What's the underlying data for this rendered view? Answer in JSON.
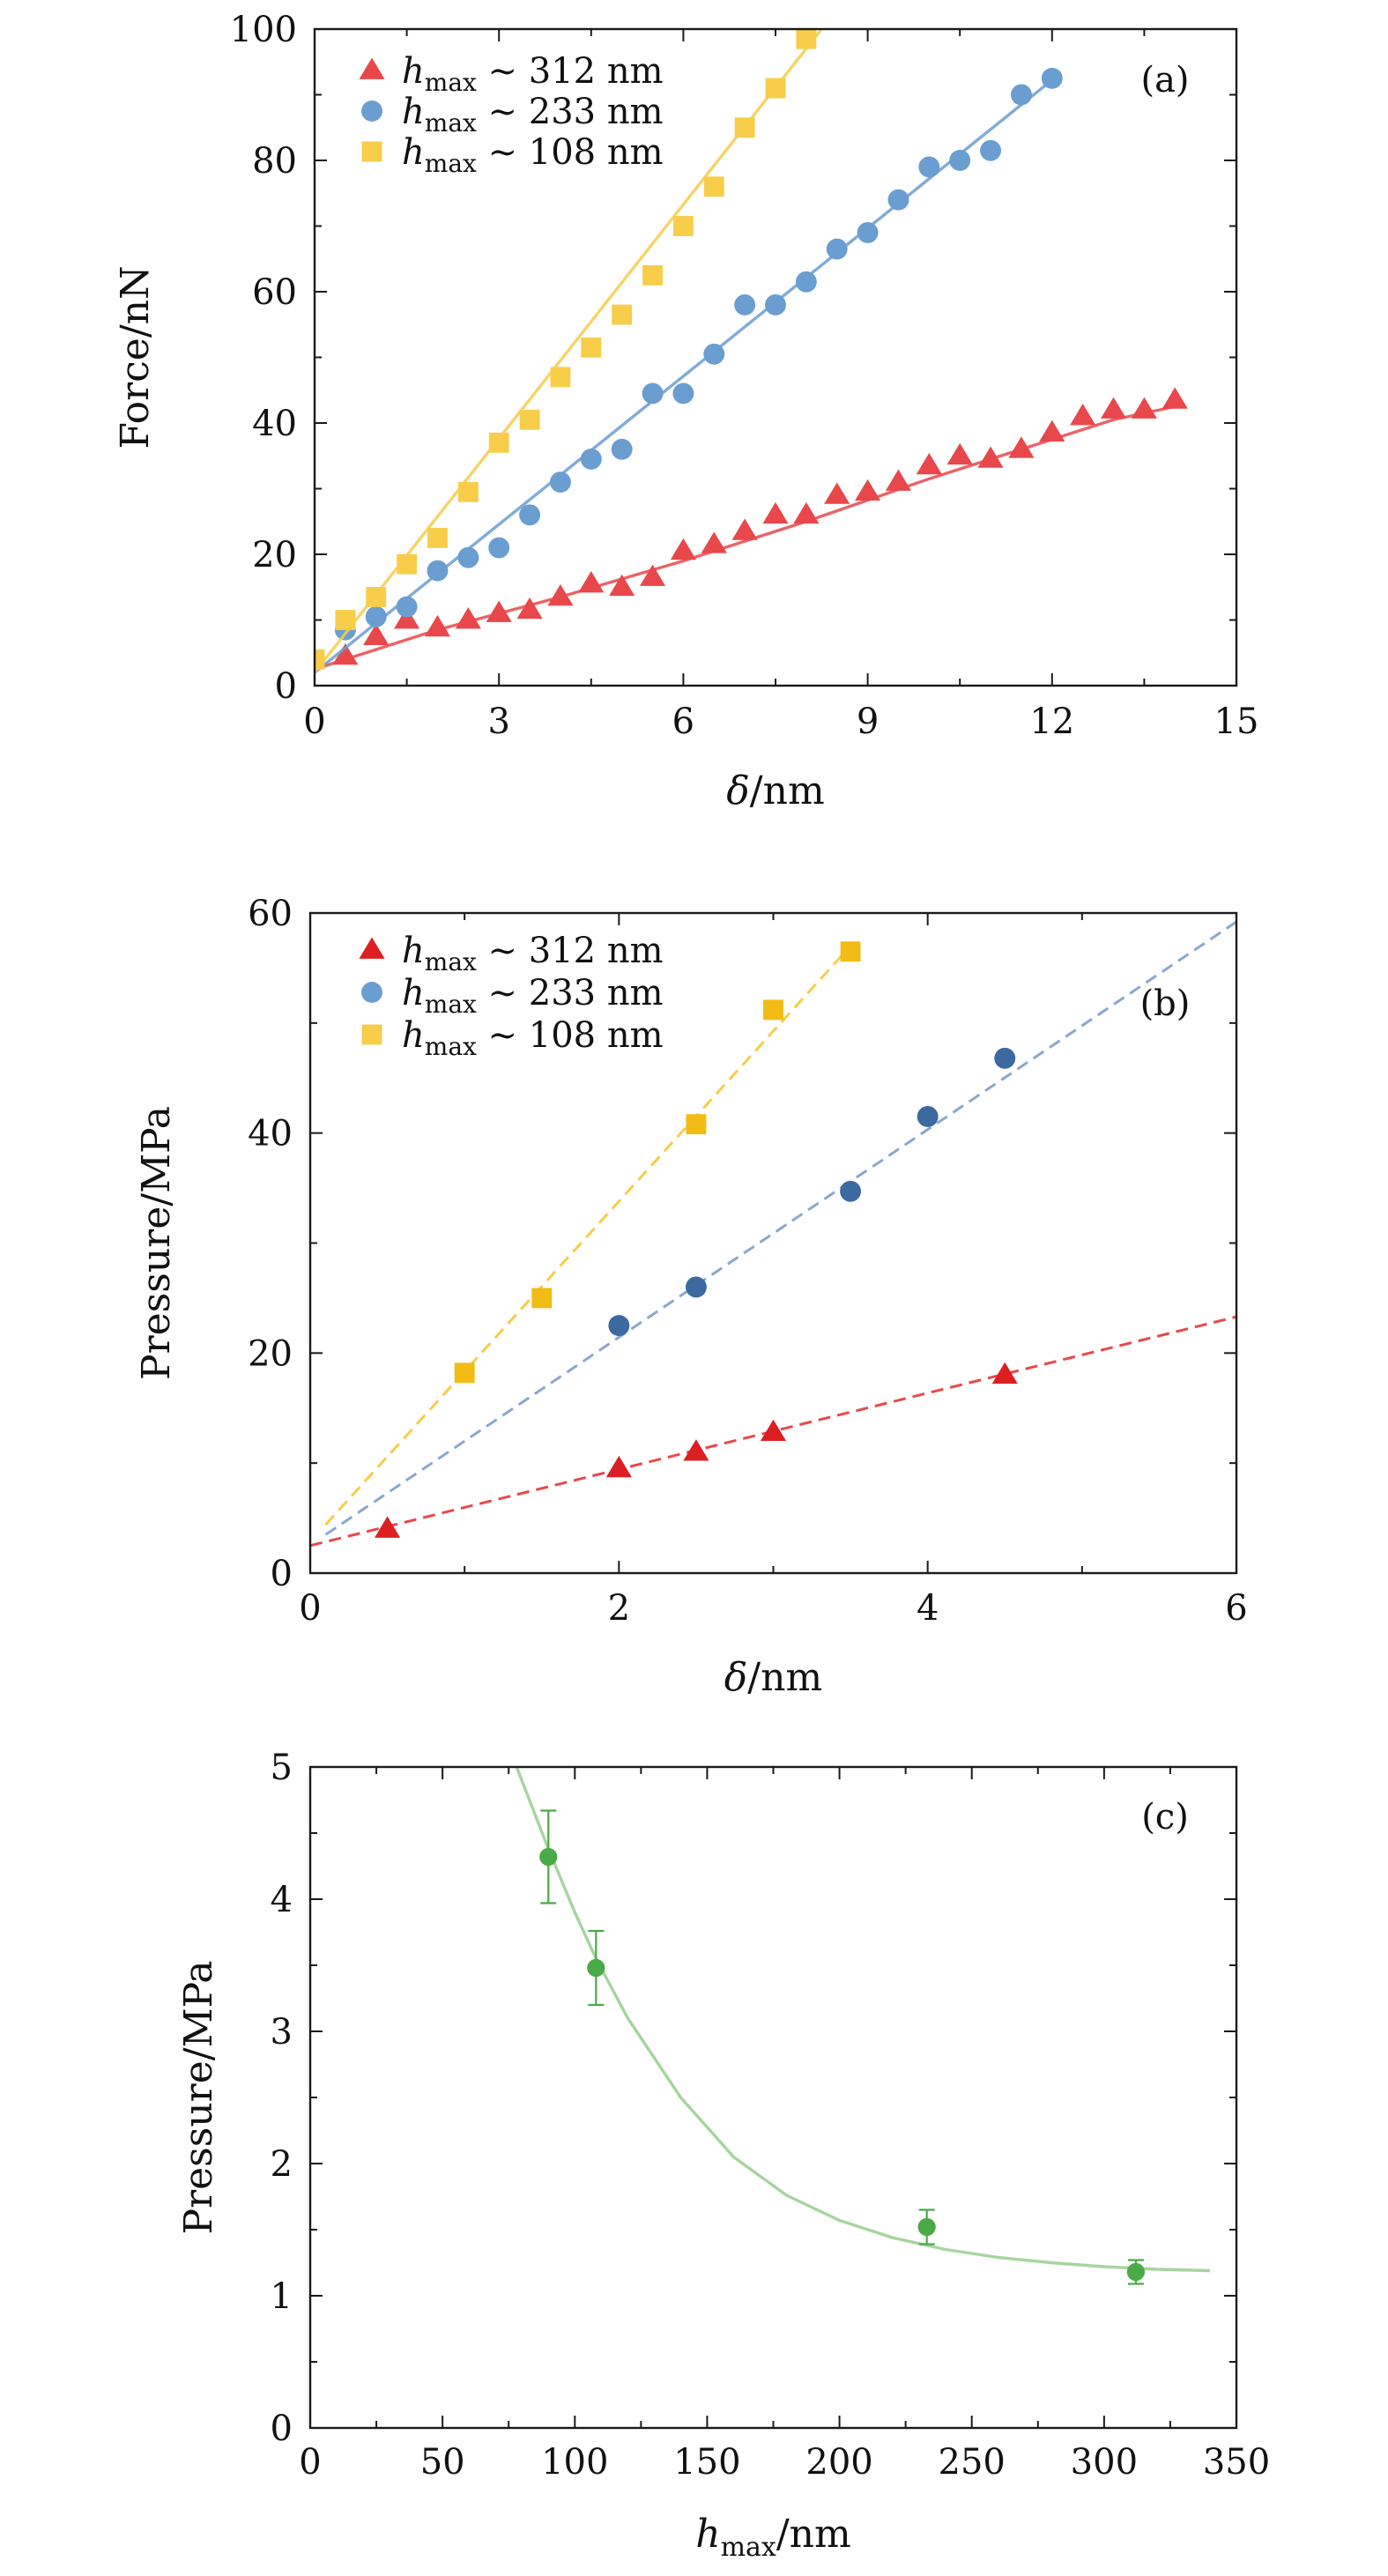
{
  "colors": {
    "red": "#e8484b",
    "blue": "#6a9ed0",
    "blue_dark": "#3c6aa0",
    "yellow": "#f7cd4a",
    "yellow_dark": "#f2bc14",
    "red_dark": "#dc1f22",
    "green": "#4aaa48",
    "green_line": "#a6d59e"
  },
  "chart_data": [
    {
      "type": "scatter",
      "panel_label": "(a)",
      "xlabel": "δ/nm",
      "ylabel": "Force/nN",
      "xlim": [
        0,
        15
      ],
      "ylim": [
        0,
        100
      ],
      "xticks": [
        0,
        3,
        6,
        9,
        12,
        15
      ],
      "yticks": [
        0,
        20,
        40,
        60,
        80,
        100
      ],
      "grid": false,
      "legend_placement": "top-left",
      "series": [
        {
          "name_prefix": "h",
          "name_sub": "max",
          "name_suffix": " ∼ 312 nm",
          "marker": "triangle",
          "color": "#e8484b",
          "x": [
            0.5,
            1.0,
            1.5,
            2.0,
            2.5,
            3.0,
            3.5,
            4.0,
            4.5,
            5.0,
            5.5,
            6.0,
            6.5,
            7.0,
            7.5,
            8.0,
            8.5,
            9.0,
            9.5,
            10.0,
            10.5,
            11.0,
            11.5,
            12.0,
            12.5,
            13.0,
            13.5,
            14.0
          ],
          "y": [
            4.5,
            7.5,
            10.0,
            8.8,
            10.0,
            11.0,
            11.5,
            13.5,
            15.5,
            15.0,
            16.5,
            20.5,
            21.5,
            23.5,
            26.0,
            26.0,
            29.0,
            29.5,
            31.0,
            33.5,
            35.0,
            34.5,
            36.0,
            38.5,
            41.0,
            42.0,
            42.0,
            43.5
          ],
          "fit": {
            "x": [
              0,
              2,
              4,
              6,
              8,
              10,
              12,
              13,
              14
            ],
            "y": [
              2.5,
              8.5,
              13.5,
              19.0,
              25.0,
              31.5,
              37.5,
              40.5,
              42.5
            ]
          }
        },
        {
          "name_prefix": "h",
          "name_sub": "max",
          "name_suffix": " ∼ 233 nm",
          "marker": "circle",
          "color": "#6a9ed0",
          "x": [
            0.5,
            1.0,
            1.5,
            2.0,
            2.5,
            3.0,
            3.5,
            4.0,
            4.5,
            5.0,
            5.5,
            6.0,
            6.5,
            7.0,
            7.5,
            8.0,
            8.5,
            9.0,
            9.5,
            10.0,
            10.5,
            11.0,
            11.5,
            12.0
          ],
          "y": [
            8.5,
            10.5,
            12.0,
            17.5,
            19.5,
            21.0,
            26.0,
            31.0,
            34.5,
            36.0,
            44.5,
            44.5,
            50.5,
            58.0,
            58.0,
            61.5,
            66.5,
            69.0,
            74.0,
            79.0,
            80.0,
            81.5,
            90.0,
            92.5
          ],
          "fit": {
            "x": [
              0,
              12.1
            ],
            "y": [
              2.0,
              93.0
            ]
          }
        },
        {
          "name_prefix": "h",
          "name_sub": "max",
          "name_suffix": " ∼ 108 nm",
          "marker": "square",
          "color": "#f7cd4a",
          "x": [
            0.0,
            0.5,
            1.0,
            1.5,
            2.0,
            2.5,
            3.0,
            3.5,
            4.0,
            4.5,
            5.0,
            5.5,
            6.0,
            6.5,
            7.0,
            7.5,
            8.0
          ],
          "y": [
            4.0,
            10.0,
            13.5,
            18.5,
            22.5,
            29.5,
            37.0,
            40.5,
            47.0,
            51.5,
            56.5,
            62.5,
            70.0,
            76.0,
            85.0,
            91.0,
            98.5
          ],
          "fit": {
            "x": [
              0,
              8.25
            ],
            "y": [
              2.0,
              100.0
            ]
          }
        }
      ]
    },
    {
      "type": "scatter",
      "panel_label": "(b)",
      "xlabel": "δ/nm",
      "ylabel": "Pressure/MPa",
      "xlim": [
        0,
        6
      ],
      "ylim": [
        0,
        60
      ],
      "xticks": [
        0,
        2,
        4,
        6
      ],
      "yticks": [
        0,
        20,
        40,
        60
      ],
      "grid": false,
      "legend_placement": "top-left",
      "series": [
        {
          "name_prefix": "h",
          "name_sub": "max",
          "name_suffix": " ∼ 312 nm",
          "marker": "triangle",
          "color": "#dc1f22",
          "line_color": "#e8484b",
          "x": [
            0.5,
            2.0,
            2.5,
            3.0,
            4.5
          ],
          "y": [
            4.0,
            9.5,
            11.0,
            12.8,
            18.0
          ],
          "fit": {
            "x": [
              0,
              6
            ],
            "y": [
              2.5,
              23.3
            ]
          }
        },
        {
          "name_prefix": "h",
          "name_sub": "max",
          "name_suffix": " ∼ 233 nm",
          "marker": "circle",
          "color": "#3c6aa0",
          "legend_color": "#6a9ed0",
          "line_color": "#8aa8cc",
          "x": [
            2.0,
            2.5,
            3.5,
            4.0,
            4.5
          ],
          "y": [
            22.5,
            26.0,
            34.7,
            41.5,
            46.8
          ],
          "fit": {
            "x": [
              0.1,
              6
            ],
            "y": [
              3.5,
              59.2
            ]
          }
        },
        {
          "name_prefix": "h",
          "name_sub": "max",
          "name_suffix": " ∼ 108 nm",
          "marker": "square",
          "color": "#f2bc14",
          "legend_color": "#f7cd4a",
          "line_color": "#f7cd4a",
          "x": [
            1.0,
            1.5,
            2.5,
            3.0,
            3.5
          ],
          "y": [
            18.2,
            25.0,
            40.8,
            51.2,
            56.5
          ],
          "fit": {
            "x": [
              0.1,
              3.5
            ],
            "y": [
              4.4,
              57.0
            ]
          }
        }
      ]
    },
    {
      "type": "scatter",
      "panel_label": "(c)",
      "xlabel_prefix": "h",
      "xlabel_sub": "max",
      "xlabel_suffix": "/nm",
      "ylabel": "Pressure/MPa",
      "xlim": [
        0,
        350
      ],
      "ylim": [
        0,
        5
      ],
      "xticks": [
        0,
        50,
        100,
        150,
        200,
        250,
        300,
        350
      ],
      "yticks": [
        0,
        1,
        2,
        3,
        4,
        5
      ],
      "grid": false,
      "series": [
        {
          "marker": "circle",
          "color": "#4aaa48",
          "line_color": "#a6d59e",
          "x": [
            90,
            108,
            233,
            312
          ],
          "y": [
            4.32,
            3.48,
            1.52,
            1.18
          ],
          "yerr": [
            0.35,
            0.28,
            0.13,
            0.09
          ],
          "fit": {
            "x": [
              78,
              90,
              100,
              108,
              120,
              140,
              160,
              180,
              200,
              220,
              240,
              260,
              280,
              300,
              320,
              340
            ],
            "y": [
              5.0,
              4.38,
              3.9,
              3.55,
              3.1,
              2.5,
              2.05,
              1.76,
              1.57,
              1.44,
              1.35,
              1.29,
              1.25,
              1.22,
              1.2,
              1.19
            ]
          }
        }
      ]
    }
  ]
}
